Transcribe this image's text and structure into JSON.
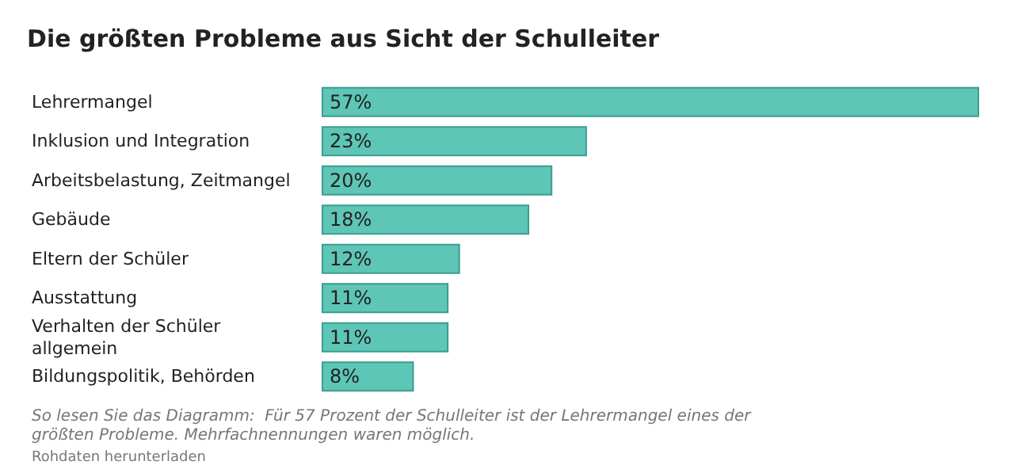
{
  "chart_data": {
    "type": "bar",
    "orientation": "horizontal",
    "title": "Die größten Probleme aus Sicht der Schulleiter",
    "categories": [
      "Lehrermangel",
      "Inklusion und Integration",
      "Arbeitsbelastung, Zeitmangel",
      "Gebäude",
      "Eltern der Schüler",
      "Ausstattung",
      "Verhalten der Schüler allgemein",
      "Bildungspolitik, Behörden"
    ],
    "values": [
      57,
      23,
      20,
      18,
      12,
      11,
      11,
      8
    ],
    "value_labels": [
      "57%",
      "23%",
      "20%",
      "18%",
      "12%",
      "11%",
      "11%",
      "8%"
    ],
    "color": "#5ec6b6",
    "annotations": [
      "So lesen Sie das Diagramm:  Für 57 Prozent der Schulleiter ist der Lehrermangel eines der größten Probleme. Mehrfachnennungen waren möglich.",
      "Rohdaten herunterladen"
    ]
  }
}
